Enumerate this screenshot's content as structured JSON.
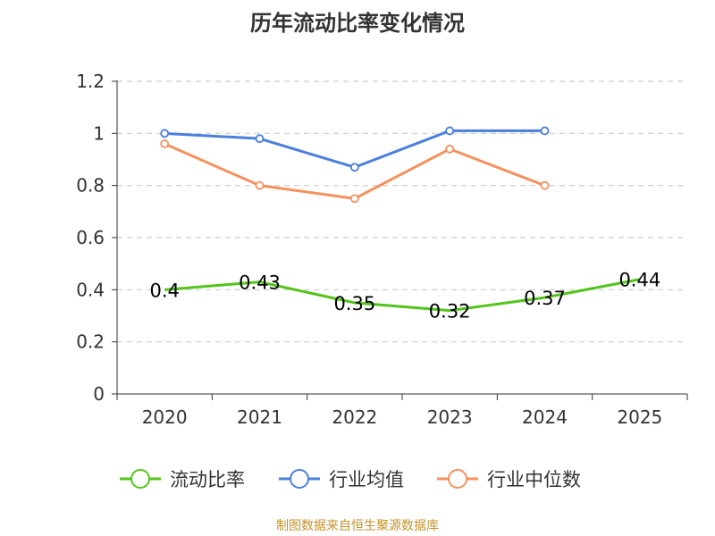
{
  "chart_data": {
    "type": "line",
    "title": "历年流动比率变化情况",
    "categories": [
      "2020",
      "2021",
      "2022",
      "2023",
      "2024",
      "2025"
    ],
    "ylim": [
      0,
      1.2
    ],
    "yticks": [
      "0",
      "0.2",
      "0.4",
      "0.6",
      "0.8",
      "1",
      "1.2"
    ],
    "grid": true,
    "legend_position": "bottom",
    "series": [
      {
        "name": "流动比率",
        "color": "#52c41a",
        "values": [
          0.4,
          0.43,
          0.35,
          0.32,
          0.37,
          0.44
        ],
        "labels": [
          "0.4",
          "0.43",
          "0.35",
          "0.32",
          "0.37",
          "0.44"
        ]
      },
      {
        "name": "行业均值",
        "color": "#4a7fdc",
        "values": [
          1.0,
          0.98,
          0.87,
          1.01,
          1.01,
          null
        ]
      },
      {
        "name": "行业中位数",
        "color": "#f5915e",
        "values": [
          0.96,
          0.8,
          0.75,
          0.94,
          0.8,
          null
        ]
      }
    ]
  },
  "source_note": "制图数据来自恒生聚源数据库"
}
